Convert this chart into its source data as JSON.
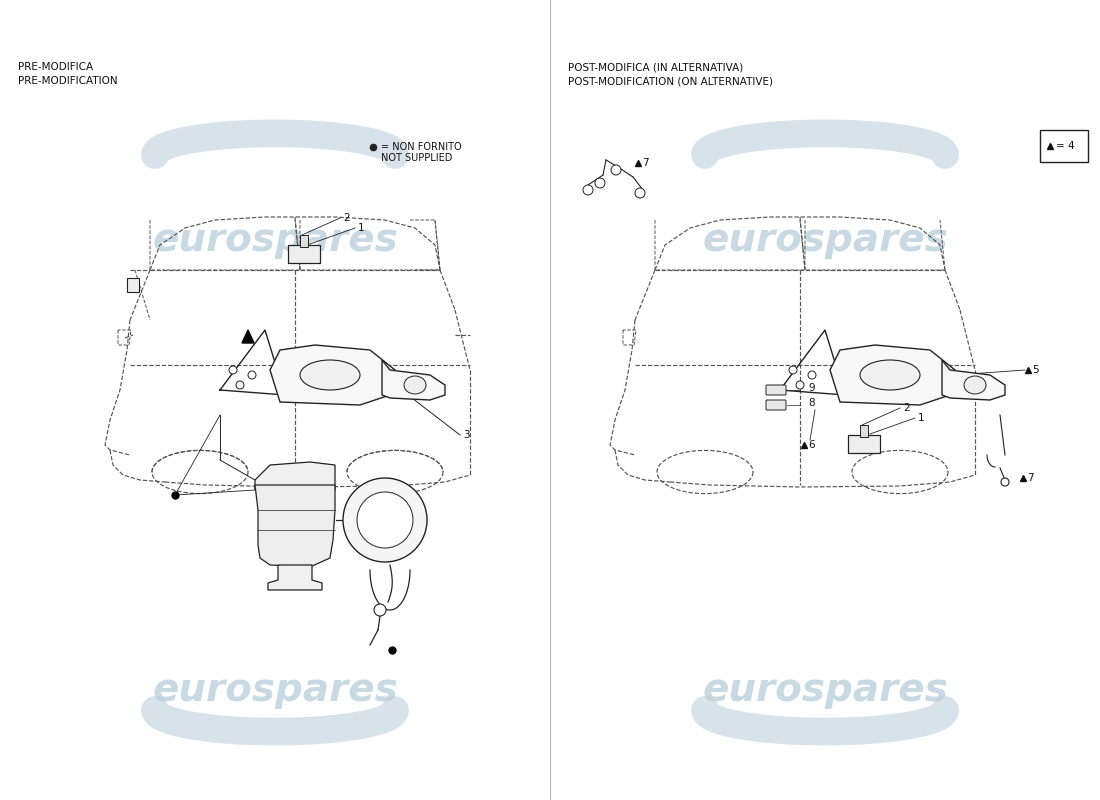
{
  "bg_color": "#ffffff",
  "left_label1": "PRE-MODIFICA",
  "left_label2": "PRE-MODIFICATION",
  "right_label1": "POST-MODIFICA (IN ALTERNATIVA)",
  "right_label2": "POST-MODIFICATION (ON ALTERNATIVE)",
  "legend1": "● = NON FORNITO",
  "legend2": "NOT SUPPLIED",
  "watermark": "eurospares",
  "watermark_color": "#b8cdd8",
  "divider_color": "#aaaaaa",
  "line_color": "#222222",
  "dashed_color": "#555555",
  "font_color": "#111111",
  "font_size_label": 7.5,
  "font_size_part": 7.5,
  "font_size_watermark": 28
}
